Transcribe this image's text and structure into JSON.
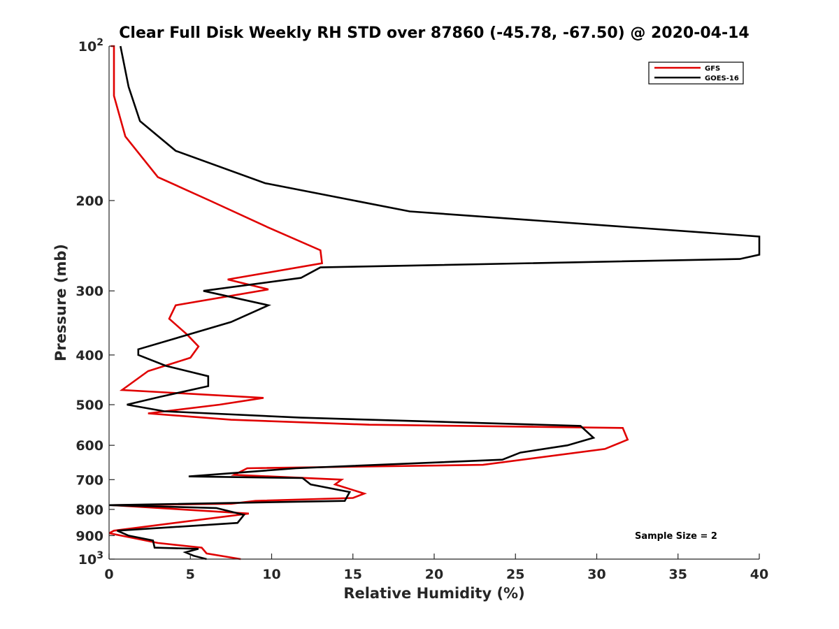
{
  "chart_data": {
    "type": "line",
    "title": "Clear Full Disk Weekly RH STD over 87860 (-45.78, -67.50) @ 2020-04-14",
    "xlabel": "Relative Humidity (%)",
    "ylabel": "Pressure (mb)",
    "xlim": [
      0,
      40
    ],
    "ylim": [
      100,
      1000
    ],
    "yscale": "log",
    "y_reversed": true,
    "grid": false,
    "legend_position": "top-right",
    "x_ticks": [
      "0",
      "5",
      "10",
      "15",
      "20",
      "25",
      "30",
      "35",
      "40"
    ],
    "y_ticks": [
      {
        "value": 100,
        "base": "10",
        "exp": "2"
      },
      {
        "value": 200,
        "label": "200"
      },
      {
        "value": 300,
        "label": "300"
      },
      {
        "value": 400,
        "label": "400"
      },
      {
        "value": 500,
        "label": "500"
      },
      {
        "value": 600,
        "label": "600"
      },
      {
        "value": 700,
        "label": "700"
      },
      {
        "value": 800,
        "label": "800"
      },
      {
        "value": 900,
        "label": "900"
      },
      {
        "value": 1000,
        "base": "10",
        "exp": "3"
      }
    ],
    "annotation": "Sample Size = 2",
    "series": [
      {
        "name": "GFS",
        "color": "#e00000",
        "points": [
          [
            0.1,
            100
          ],
          [
            0.3,
            100
          ],
          [
            0.3,
            125
          ],
          [
            1.0,
            150
          ],
          [
            3.0,
            180
          ],
          [
            6.2,
            200
          ],
          [
            9.7,
            225
          ],
          [
            13.0,
            250
          ],
          [
            13.1,
            265
          ],
          [
            7.3,
            285
          ],
          [
            9.8,
            298
          ],
          [
            4.1,
            320
          ],
          [
            3.7,
            340
          ],
          [
            4.8,
            365
          ],
          [
            5.5,
            385
          ],
          [
            5.0,
            405
          ],
          [
            2.4,
            430
          ],
          [
            0.8,
            468
          ],
          [
            9.5,
            485
          ],
          [
            6.8,
            500
          ],
          [
            2.4,
            520
          ],
          [
            7.5,
            535
          ],
          [
            16.0,
            547
          ],
          [
            31.6,
            555
          ],
          [
            31.9,
            585
          ],
          [
            30.5,
            610
          ],
          [
            23.0,
            655
          ],
          [
            8.5,
            665
          ],
          [
            7.7,
            685
          ],
          [
            14.3,
            700
          ],
          [
            13.9,
            715
          ],
          [
            15.7,
            745
          ],
          [
            15.0,
            760
          ],
          [
            9.0,
            770
          ],
          [
            7.5,
            780
          ],
          [
            0.2,
            785
          ],
          [
            8.6,
            815
          ],
          [
            0.3,
            880
          ],
          [
            0.0,
            890
          ],
          [
            1.5,
            910
          ],
          [
            3.0,
            930
          ],
          [
            5.7,
            950
          ],
          [
            6.0,
            975
          ],
          [
            8.1,
            1000
          ]
        ]
      },
      {
        "name": "GOES-16",
        "color": "#000000",
        "points": [
          [
            0.7,
            100
          ],
          [
            1.2,
            120
          ],
          [
            1.9,
            140
          ],
          [
            4.1,
            160
          ],
          [
            9.6,
            185
          ],
          [
            18.5,
            210
          ],
          [
            40.0,
            235
          ],
          [
            40.0,
            255
          ],
          [
            38.8,
            260
          ],
          [
            13.0,
            270
          ],
          [
            11.8,
            283
          ],
          [
            5.8,
            300
          ],
          [
            9.8,
            320
          ],
          [
            7.5,
            345
          ],
          [
            1.8,
            390
          ],
          [
            1.8,
            400
          ],
          [
            3.5,
            420
          ],
          [
            6.1,
            440
          ],
          [
            6.1,
            460
          ],
          [
            3.1,
            483
          ],
          [
            1.1,
            500
          ],
          [
            3.4,
            515
          ],
          [
            11.8,
            530
          ],
          [
            29.0,
            550
          ],
          [
            29.8,
            580
          ],
          [
            28.2,
            600
          ],
          [
            25.3,
            620
          ],
          [
            24.2,
            640
          ],
          [
            11.5,
            665
          ],
          [
            4.9,
            690
          ],
          [
            11.9,
            695
          ],
          [
            12.4,
            715
          ],
          [
            14.8,
            740
          ],
          [
            14.5,
            770
          ],
          [
            0.0,
            785
          ],
          [
            6.6,
            795
          ],
          [
            8.3,
            820
          ],
          [
            7.9,
            850
          ],
          [
            3.0,
            870
          ],
          [
            0.5,
            880
          ],
          [
            1.2,
            900
          ],
          [
            2.7,
            920
          ],
          [
            2.8,
            950
          ],
          [
            5.5,
            955
          ],
          [
            4.7,
            970
          ],
          [
            5.2,
            985
          ],
          [
            6.0,
            1000
          ]
        ]
      }
    ]
  }
}
